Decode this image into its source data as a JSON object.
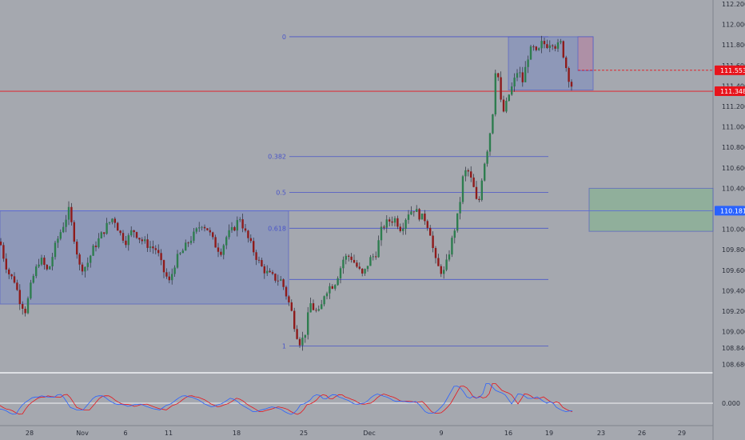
{
  "chart_data": {
    "type": "candlestick",
    "instrument_label": "",
    "y_axis": {
      "ticks": [
        "112.200",
        "112.000",
        "111.800",
        "111.600",
        "111.400",
        "111.200",
        "111.000",
        "110.800",
        "110.600",
        "110.400",
        "110.200",
        "110.000",
        "109.800",
        "109.600",
        "109.400",
        "109.200",
        "109.000",
        "108.840",
        "108.680"
      ],
      "range": [
        108.58,
        112.24
      ]
    },
    "x_axis": {
      "ticks": [
        "28",
        "Nov",
        "6",
        "11",
        "18",
        "25",
        "Dec",
        "9",
        "16",
        "19",
        "23",
        "26",
        "29"
      ]
    },
    "price_badges": [
      {
        "label": "111.553",
        "value": 111.553,
        "color": "#e8141c"
      },
      {
        "label": "111.348",
        "value": 111.348,
        "color": "#e8141c"
      },
      {
        "label": "110.181",
        "value": 110.181,
        "color": "#2962ff"
      }
    ],
    "horizontal_lines": [
      {
        "value": 111.348,
        "color": "#e8141c",
        "style": "solid"
      },
      {
        "value": 110.181,
        "color": "#5b6bd6",
        "style": "solid"
      }
    ],
    "fibonacci": {
      "levels": [
        {
          "label": "0",
          "value": 111.88
        },
        {
          "label": "0.382",
          "value": 110.71
        },
        {
          "label": "0.5",
          "value": 110.36
        },
        {
          "label": "0.618",
          "value": 110.01
        },
        {
          "label": "",
          "value": 109.51
        },
        {
          "label": "1",
          "value": 108.86
        }
      ],
      "color": "#4a55c8"
    },
    "zones": [
      {
        "name": "range-box",
        "from_date": "Oct 23",
        "to_date": "Nov 22",
        "top": 110.18,
        "bottom": 109.27,
        "color": "#7c8bbf"
      },
      {
        "name": "top-box",
        "from_date": "Dec 16",
        "to_date": "Dec 21",
        "top": 111.88,
        "bottom": 111.36,
        "color": "#7c8bbf"
      },
      {
        "name": "short-stop",
        "from_date": "Dec 21",
        "to_date": "Dec 21",
        "top": 111.88,
        "bottom": 111.55,
        "color": "#c98b98"
      },
      {
        "name": "short-target",
        "from_date": "Dec 22",
        "to_date": "Dec 29",
        "top": 110.4,
        "bottom": 109.98,
        "color": "#7fb58a"
      }
    ],
    "entry_level": 111.553,
    "candle_colors": {
      "up": "#2e7d4f",
      "down": "#8e1b1b",
      "wick": "#2a2e39"
    },
    "price_path": [
      [
        0,
        109.88
      ],
      [
        6,
        109.68
      ],
      [
        12,
        109.55
      ],
      [
        18,
        109.5
      ],
      [
        25,
        109.3
      ],
      [
        32,
        109.2
      ],
      [
        40,
        109.5
      ],
      [
        50,
        109.72
      ],
      [
        60,
        109.58
      ],
      [
        70,
        109.86
      ],
      [
        78,
        110.02
      ],
      [
        86,
        110.18
      ],
      [
        92,
        109.95
      ],
      [
        100,
        109.62
      ],
      [
        108,
        109.64
      ],
      [
        116,
        109.8
      ],
      [
        125,
        109.92
      ],
      [
        134,
        110.04
      ],
      [
        142,
        110.12
      ],
      [
        150,
        109.96
      ],
      [
        158,
        109.88
      ],
      [
        166,
        110.0
      ],
      [
        176,
        109.9
      ],
      [
        186,
        109.84
      ],
      [
        196,
        109.8
      ],
      [
        204,
        109.6
      ],
      [
        212,
        109.48
      ],
      [
        220,
        109.7
      ],
      [
        228,
        109.78
      ],
      [
        236,
        109.88
      ],
      [
        244,
        109.96
      ],
      [
        252,
        110.06
      ],
      [
        260,
        110.0
      ],
      [
        268,
        109.86
      ],
      [
        276,
        109.78
      ],
      [
        284,
        109.94
      ],
      [
        292,
        110.0
      ],
      [
        300,
        110.12
      ],
      [
        306,
        109.98
      ],
      [
        312,
        109.88
      ],
      [
        320,
        109.74
      ],
      [
        328,
        109.62
      ],
      [
        336,
        109.56
      ],
      [
        344,
        109.52
      ],
      [
        352,
        109.5
      ],
      [
        358,
        109.36
      ],
      [
        364,
        109.22
      ],
      [
        370,
        109.0
      ],
      [
        376,
        108.88
      ],
      [
        382,
        109.0
      ],
      [
        388,
        109.28
      ],
      [
        394,
        109.2
      ],
      [
        400,
        109.18
      ],
      [
        406,
        109.38
      ],
      [
        412,
        109.44
      ],
      [
        418,
        109.46
      ],
      [
        424,
        109.58
      ],
      [
        430,
        109.72
      ],
      [
        438,
        109.74
      ],
      [
        446,
        109.64
      ],
      [
        454,
        109.54
      ],
      [
        462,
        109.7
      ],
      [
        470,
        109.76
      ],
      [
        478,
        110.02
      ],
      [
        486,
        110.08
      ],
      [
        494,
        110.1
      ],
      [
        502,
        110.0
      ],
      [
        510,
        110.16
      ],
      [
        518,
        110.2
      ],
      [
        526,
        110.12
      ],
      [
        532,
        110.1
      ],
      [
        538,
        109.98
      ],
      [
        544,
        109.7
      ],
      [
        550,
        109.6
      ],
      [
        556,
        109.58
      ],
      [
        562,
        109.78
      ],
      [
        568,
        109.98
      ],
      [
        574,
        110.18
      ],
      [
        580,
        110.56
      ],
      [
        586,
        110.56
      ],
      [
        592,
        110.42
      ],
      [
        598,
        110.2
      ],
      [
        604,
        110.58
      ],
      [
        610,
        110.8
      ],
      [
        616,
        111.1
      ],
      [
        620,
        111.58
      ],
      [
        624,
        111.46
      ],
      [
        628,
        111.12
      ],
      [
        632,
        111.18
      ],
      [
        636,
        111.3
      ],
      [
        642,
        111.42
      ],
      [
        648,
        111.56
      ],
      [
        654,
        111.44
      ],
      [
        660,
        111.68
      ],
      [
        666,
        111.78
      ],
      [
        672,
        111.7
      ],
      [
        678,
        111.82
      ],
      [
        684,
        111.8
      ],
      [
        690,
        111.84
      ],
      [
        696,
        111.78
      ],
      [
        702,
        111.82
      ],
      [
        706,
        111.66
      ],
      [
        710,
        111.52
      ],
      [
        714,
        111.42
      ],
      [
        718,
        111.36
      ]
    ],
    "oscillator": {
      "zero_label": "0.000",
      "line_colors": [
        "#2962ff",
        "#e8141c"
      ]
    },
    "grid": false,
    "legend": "none"
  }
}
